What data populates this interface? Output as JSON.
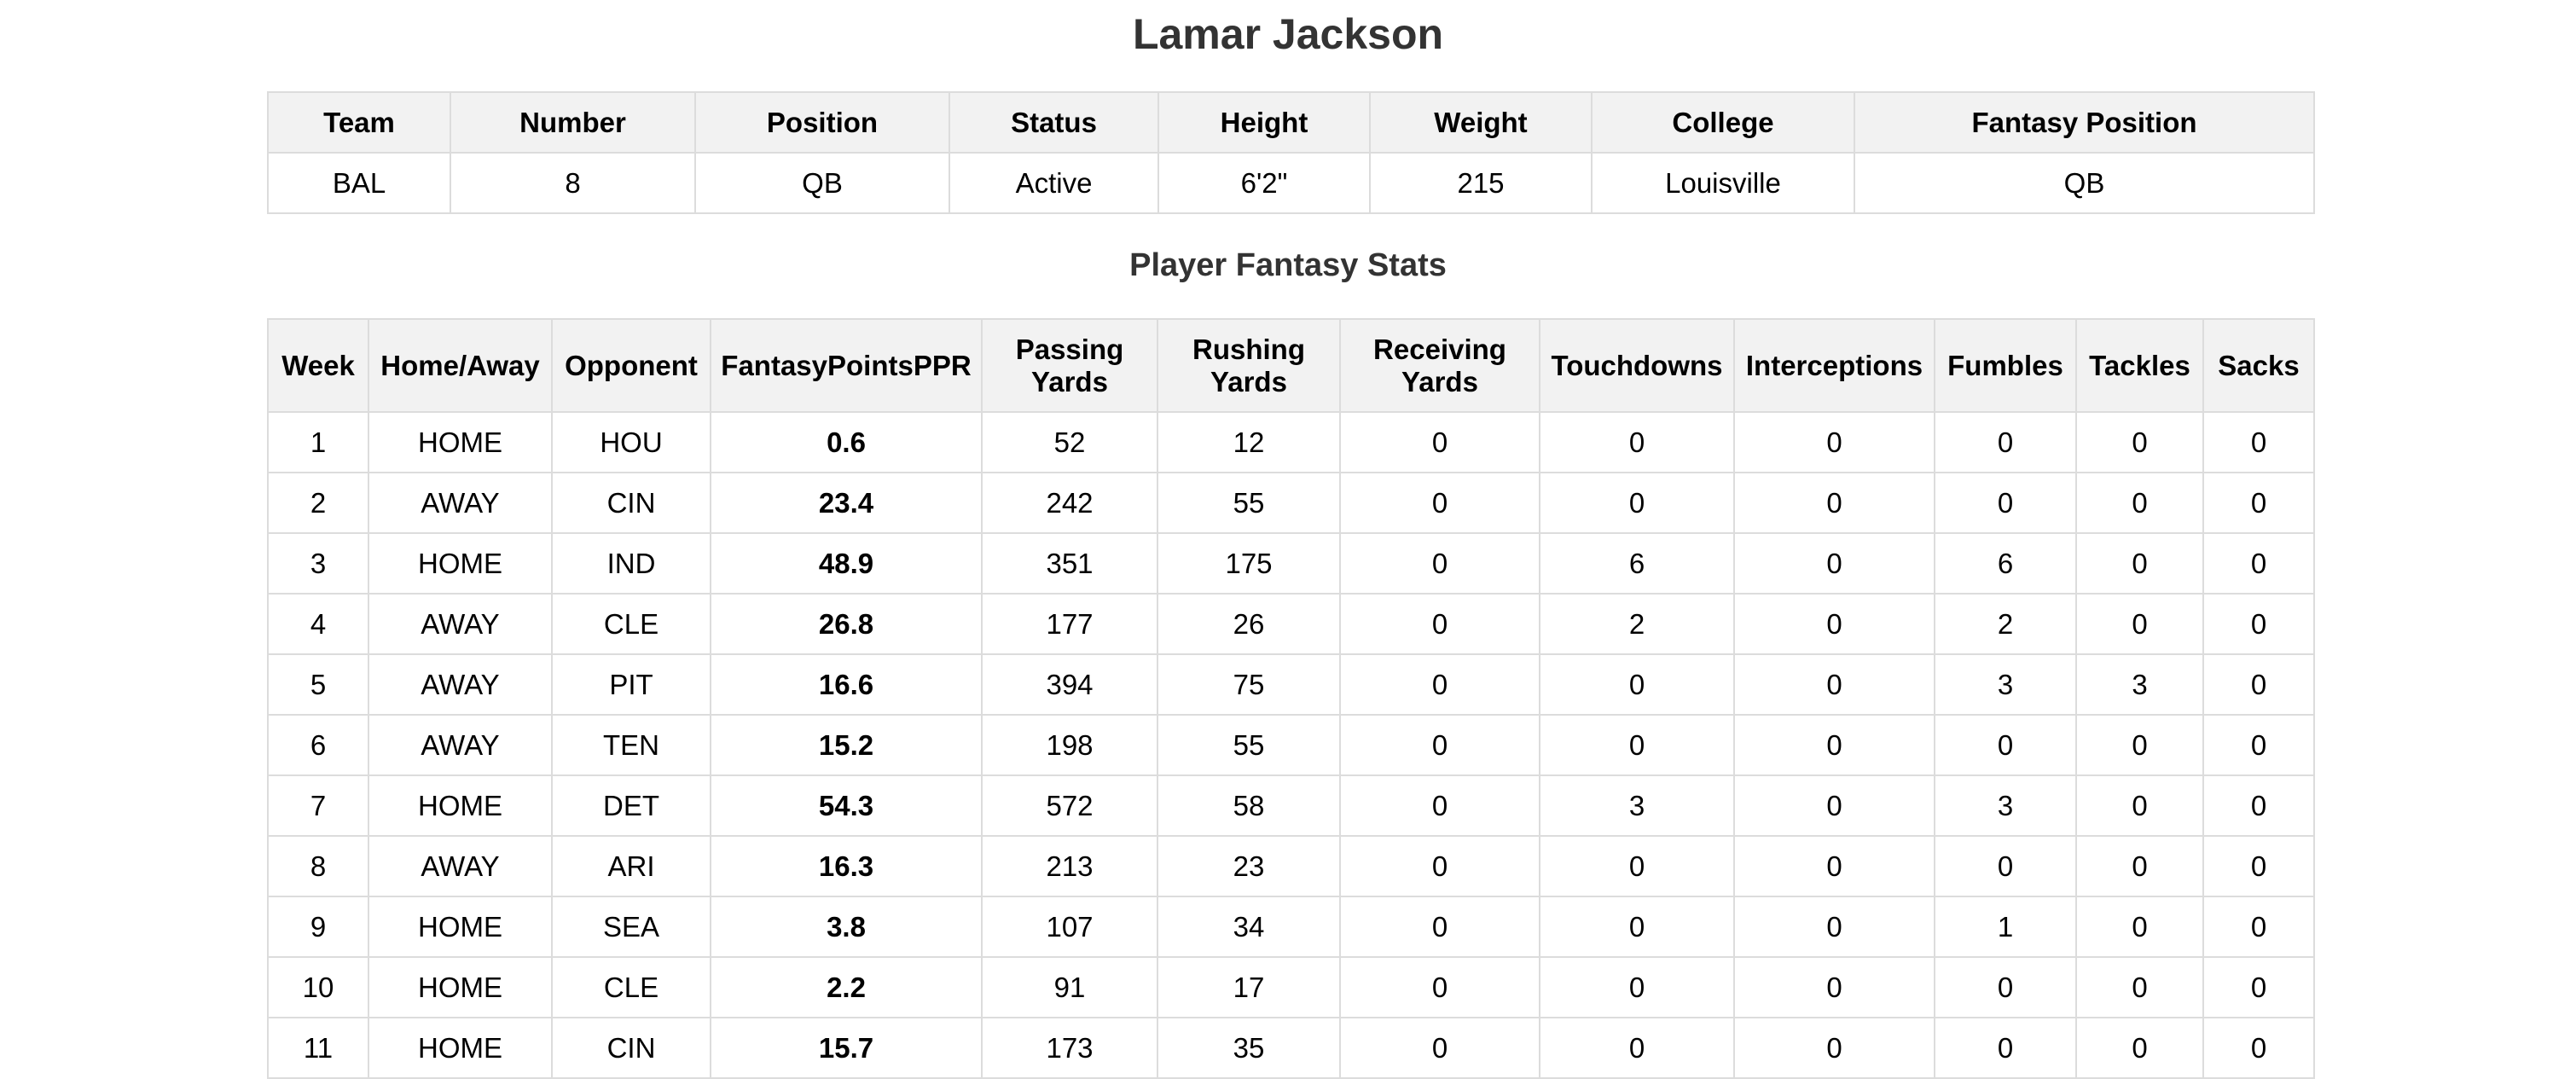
{
  "player": {
    "name": "Lamar Jackson"
  },
  "info_table": {
    "headers": [
      "Team",
      "Number",
      "Position",
      "Status",
      "Height",
      "Weight",
      "College",
      "Fantasy Position"
    ],
    "values": [
      "BAL",
      "8",
      "QB",
      "Active",
      "6'2\"",
      "215",
      "Louisville",
      "QB"
    ]
  },
  "stats_section": {
    "title": "Player Fantasy Stats",
    "headers": [
      "Week",
      "Home/Away",
      "Opponent",
      "FantasyPointsPPR",
      "Passing Yards",
      "Rushing Yards",
      "Receiving Yards",
      "Touchdowns",
      "Interceptions",
      "Fumbles",
      "Tackles",
      "Sacks"
    ],
    "rows": [
      [
        "1",
        "HOME",
        "HOU",
        "0.6",
        "52",
        "12",
        "0",
        "0",
        "0",
        "0",
        "0",
        "0"
      ],
      [
        "2",
        "AWAY",
        "CIN",
        "23.4",
        "242",
        "55",
        "0",
        "0",
        "0",
        "0",
        "0",
        "0"
      ],
      [
        "3",
        "HOME",
        "IND",
        "48.9",
        "351",
        "175",
        "0",
        "6",
        "0",
        "6",
        "0",
        "0"
      ],
      [
        "4",
        "AWAY",
        "CLE",
        "26.8",
        "177",
        "26",
        "0",
        "2",
        "0",
        "2",
        "0",
        "0"
      ],
      [
        "5",
        "AWAY",
        "PIT",
        "16.6",
        "394",
        "75",
        "0",
        "0",
        "0",
        "3",
        "3",
        "0"
      ],
      [
        "6",
        "AWAY",
        "TEN",
        "15.2",
        "198",
        "55",
        "0",
        "0",
        "0",
        "0",
        "0",
        "0"
      ],
      [
        "7",
        "HOME",
        "DET",
        "54.3",
        "572",
        "58",
        "0",
        "3",
        "0",
        "3",
        "0",
        "0"
      ],
      [
        "8",
        "AWAY",
        "ARI",
        "16.3",
        "213",
        "23",
        "0",
        "0",
        "0",
        "0",
        "0",
        "0"
      ],
      [
        "9",
        "HOME",
        "SEA",
        "3.8",
        "107",
        "34",
        "0",
        "0",
        "0",
        "1",
        "0",
        "0"
      ],
      [
        "10",
        "HOME",
        "CLE",
        "2.2",
        "91",
        "17",
        "0",
        "0",
        "0",
        "0",
        "0",
        "0"
      ],
      [
        "11",
        "HOME",
        "CIN",
        "15.7",
        "173",
        "35",
        "0",
        "0",
        "0",
        "0",
        "0",
        "0"
      ]
    ]
  }
}
